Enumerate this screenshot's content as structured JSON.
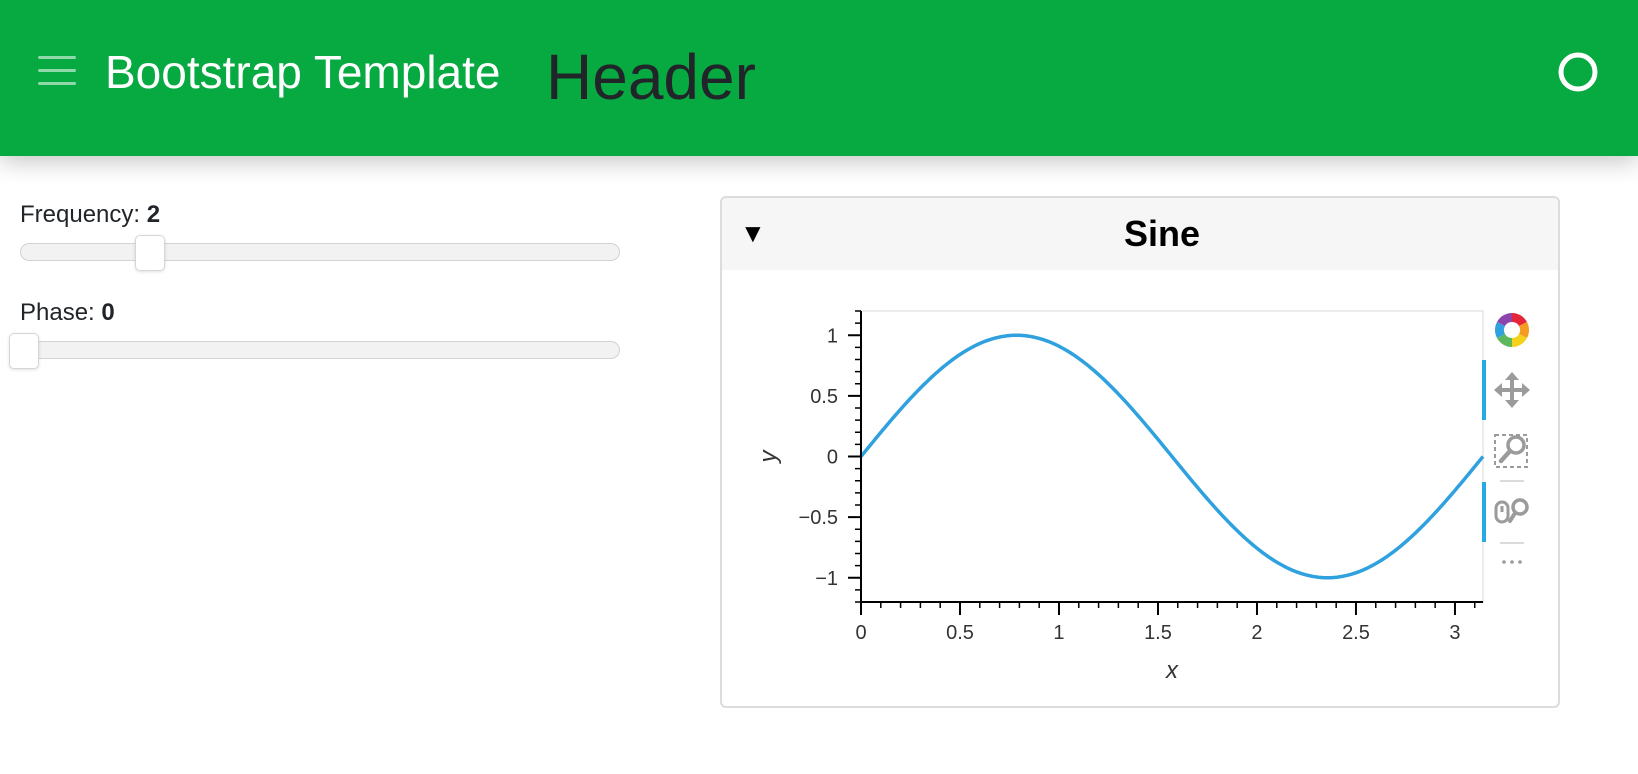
{
  "header": {
    "app_title": "Bootstrap Template",
    "page_header": "Header",
    "background_color": "#07aa41"
  },
  "sidebar": {
    "sliders": [
      {
        "label": "Frequency: ",
        "value": "2",
        "fraction": 0.2
      },
      {
        "label": "Phase: ",
        "value": "0",
        "fraction": 0.0
      }
    ]
  },
  "card": {
    "collapse_icon": "▼",
    "title": "Sine"
  },
  "toolbar": {
    "icons": [
      "bokeh-logo-icon",
      "pan-icon",
      "box-zoom-icon",
      "wheel-zoom-icon",
      "more-icon"
    ],
    "active_color": "#26aae1"
  },
  "chart_data": {
    "type": "line",
    "function": "y = sin(2x + 0)",
    "x": [
      0,
      0.2,
      0.4,
      0.6,
      0.8,
      1.0,
      1.2,
      1.4,
      1.6,
      1.8,
      2.0,
      2.2,
      2.4,
      2.6,
      2.8,
      3.0,
      3.14159
    ],
    "y": [
      0,
      0.389,
      0.717,
      0.932,
      1.0,
      0.909,
      0.675,
      0.335,
      -0.058,
      -0.443,
      -0.757,
      -0.952,
      -0.996,
      -0.883,
      -0.631,
      -0.279,
      0
    ],
    "xlabel": "x",
    "ylabel": "y",
    "xlim": [
      0,
      3.14159
    ],
    "ylim": [
      -1.2,
      1.2
    ],
    "xticks": [
      "0",
      "0.5",
      "1",
      "1.5",
      "2",
      "2.5",
      "3"
    ],
    "yticks": [
      "−1",
      "−0.5",
      "0",
      "0.5",
      "1"
    ],
    "line_color": "#2fa1de",
    "grid": false
  }
}
